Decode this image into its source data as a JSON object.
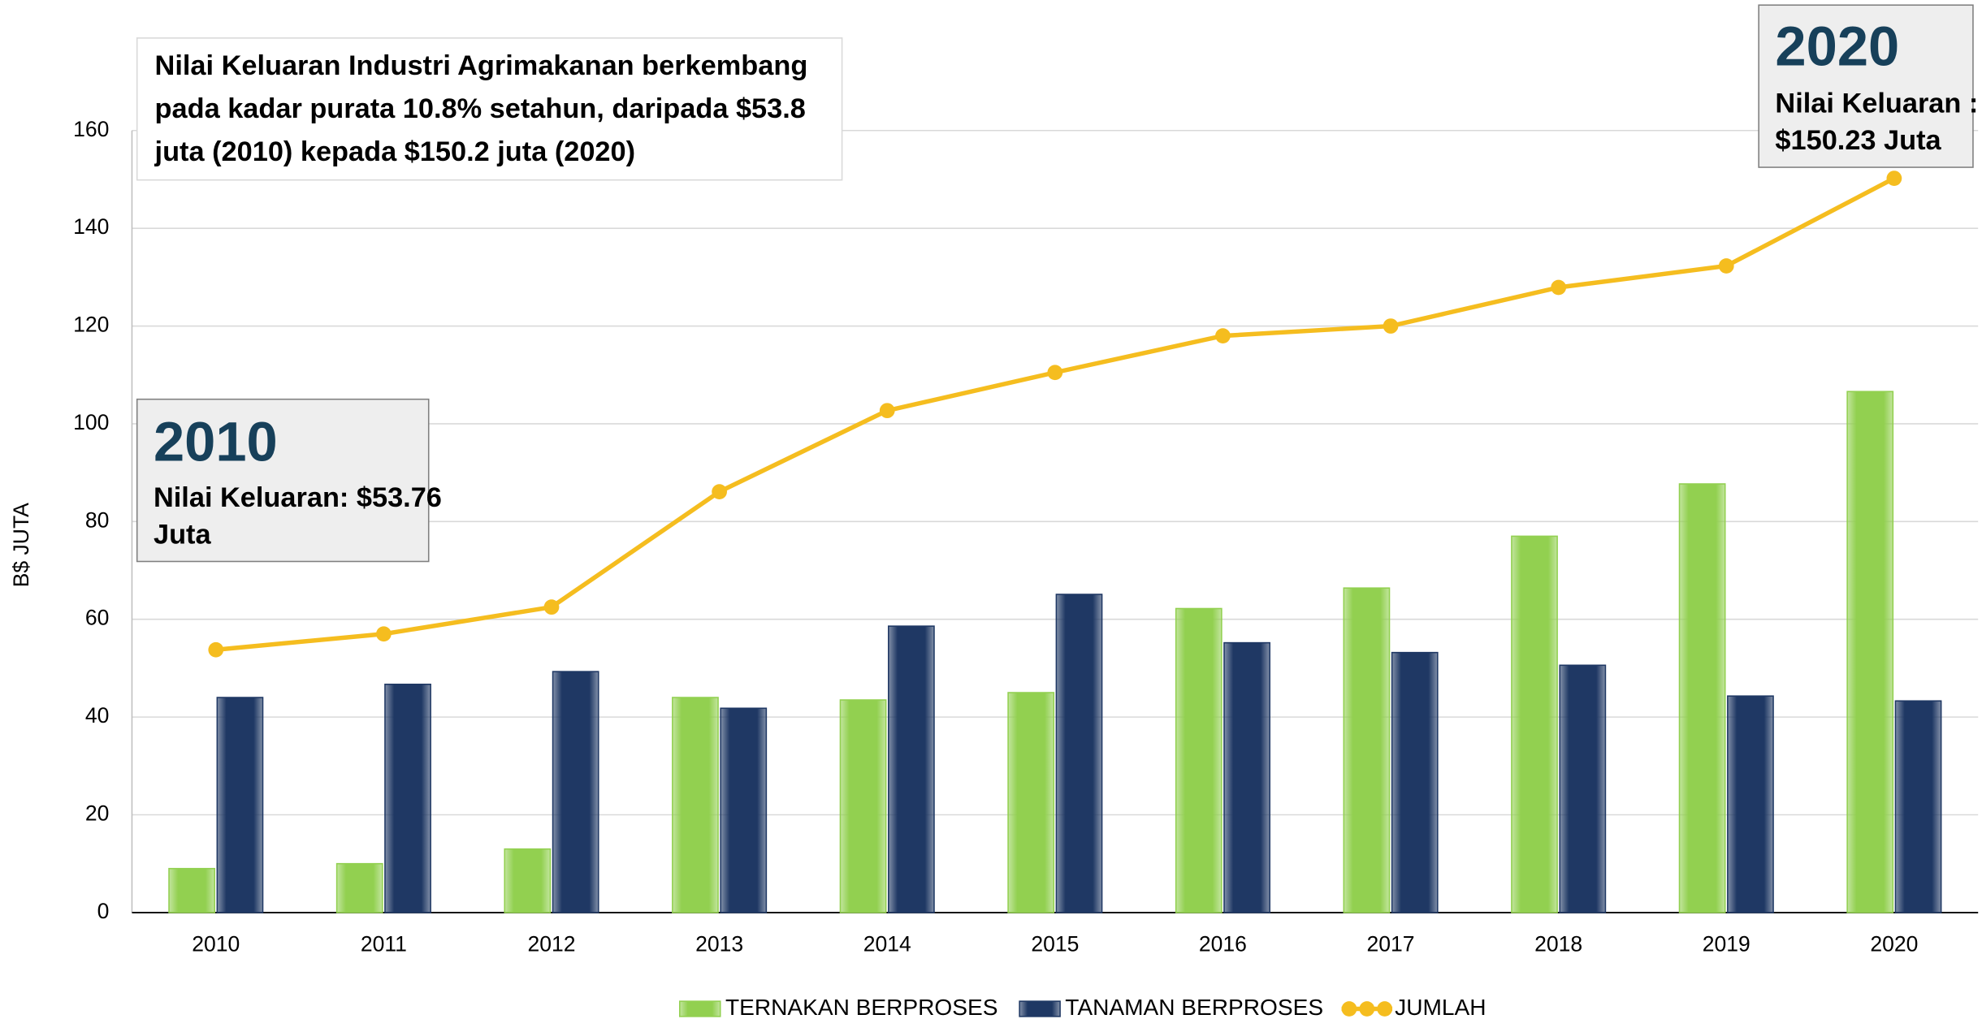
{
  "chart_data": {
    "type": "bar_line",
    "ylabel": "B$ JUTA",
    "categories": [
      "2010",
      "2011",
      "2012",
      "2013",
      "2014",
      "2015",
      "2016",
      "2017",
      "2018",
      "2019",
      "2020"
    ],
    "series": [
      {
        "name": "TERNAKAN BERPROSES",
        "color": "#92d050",
        "type": "bar",
        "values": [
          9,
          10,
          13,
          44,
          43.5,
          45,
          62.2,
          66.4,
          77,
          87.7,
          106.6
        ]
      },
      {
        "name": "TANAMAN BERPROSES",
        "color": "#1f3864",
        "type": "bar",
        "values": [
          44,
          46.7,
          49.3,
          41.8,
          58.6,
          65.1,
          55.2,
          53.2,
          50.6,
          44.3,
          43.3
        ]
      },
      {
        "name": "JUMLAH",
        "color": "#f5bd1f",
        "type": "line",
        "values": [
          53.76,
          57,
          62.5,
          86.1,
          102.7,
          110.5,
          118,
          120,
          127.9,
          132.3,
          150.23
        ]
      }
    ],
    "ylim": [
      0,
      160
    ],
    "yticks": [
      0,
      20,
      40,
      60,
      80,
      100,
      120,
      140,
      160
    ],
    "grid": true,
    "annotations": [
      {
        "lines": [
          "Nilai Keluaran Industri Agrimakanan berkembang",
          "pada kadar purata 10.8% setahun, daripada $53.8",
          "juta (2010) kepada $150.2 juta (2020)"
        ]
      },
      {
        "year": "2010",
        "lines": [
          "Nilai Keluaran: $53.76",
          "Juta"
        ]
      },
      {
        "year": "2020",
        "lines": [
          "Nilai Keluaran :",
          "$150.23 Juta"
        ]
      }
    ]
  }
}
